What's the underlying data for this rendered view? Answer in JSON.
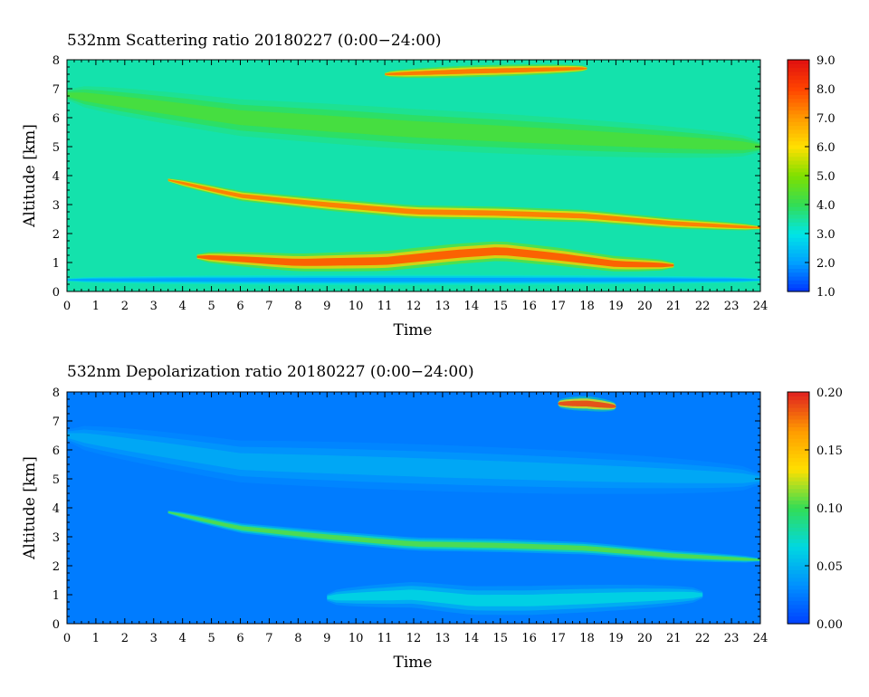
{
  "panels": [
    {
      "title": "532nm Scattering ratio  20180227 (0:00−24:00)",
      "xlabel": "Time",
      "ylabel": "Altitude [km]",
      "x_ticks": [
        "0",
        "1",
        "2",
        "3",
        "4",
        "5",
        "6",
        "7",
        "8",
        "9",
        "10",
        "11",
        "12",
        "13",
        "14",
        "15",
        "16",
        "17",
        "18",
        "19",
        "20",
        "21",
        "22",
        "23",
        "24"
      ],
      "y_ticks": [
        "0",
        "1",
        "2",
        "3",
        "4",
        "5",
        "6",
        "7",
        "8"
      ],
      "colorbar_ticks": [
        "1.0",
        "2.0",
        "3.0",
        "4.0",
        "5.0",
        "6.0",
        "7.0",
        "8.0",
        "9.0"
      ]
    },
    {
      "title": "532nm Depolarization ratio  20180227 (0:00−24:00)",
      "xlabel": "Time",
      "ylabel": "Altitude [km]",
      "x_ticks": [
        "0",
        "1",
        "2",
        "3",
        "4",
        "5",
        "6",
        "7",
        "8",
        "9",
        "10",
        "11",
        "12",
        "13",
        "14",
        "15",
        "16",
        "17",
        "18",
        "19",
        "20",
        "21",
        "22",
        "23",
        "24"
      ],
      "y_ticks": [
        "0",
        "1",
        "2",
        "3",
        "4",
        "5",
        "6",
        "7",
        "8"
      ],
      "colorbar_ticks": [
        "0.00",
        "0.05",
        "0.10",
        "0.15",
        "0.20"
      ]
    }
  ],
  "chart_data": [
    {
      "type": "heatmap",
      "title": "532nm Scattering ratio  20180227 (0:00−24:00)",
      "xlabel": "Time",
      "ylabel": "Altitude [km]",
      "xlim": [
        0,
        24
      ],
      "ylim": [
        0,
        8
      ],
      "colorbar": {
        "min": 1.0,
        "max": 9.0,
        "ticks": [
          1,
          2,
          3,
          4,
          5,
          6,
          7,
          8,
          9
        ],
        "colors": [
          "#0033ff",
          "#00a0ff",
          "#00e6e6",
          "#33dd55",
          "#7ee000",
          "#ffe000",
          "#ff9a00",
          "#ff4400",
          "#e01010"
        ]
      },
      "background_value": 3.4,
      "features": [
        {
          "name": "upper elevated layer",
          "t": [
            3.5,
            6,
            9,
            12,
            15,
            18,
            21,
            24
          ],
          "alt": [
            3.85,
            3.3,
            3.0,
            2.75,
            2.7,
            2.6,
            2.35,
            2.2
          ],
          "thickness_km": 0.45,
          "peak": 7.4
        },
        {
          "name": "lower elevated layer",
          "t": [
            4.5,
            8,
            11,
            13.5,
            15,
            17,
            19,
            21
          ],
          "alt": [
            1.2,
            1.0,
            1.05,
            1.3,
            1.4,
            1.2,
            0.95,
            0.9
          ],
          "thickness_km": 0.7,
          "peak": 7.8
        },
        {
          "name": "mid green band",
          "t": [
            0,
            6,
            12,
            18,
            24
          ],
          "alt": [
            6.8,
            6.0,
            5.6,
            5.3,
            5.0
          ],
          "thickness_km": 1.4,
          "peak": 4.3
        },
        {
          "name": "surface layer",
          "t": [
            0,
            24
          ],
          "alt": [
            0.4,
            0.4
          ],
          "thickness_km": 0.35,
          "peak": 2.0
        },
        {
          "name": "upper cloud",
          "t": [
            11,
            14,
            18
          ],
          "alt": [
            7.5,
            7.6,
            7.7
          ],
          "thickness_km": 0.4,
          "peak": 7.5
        }
      ]
    },
    {
      "type": "heatmap",
      "title": "532nm Depolarization ratio  20180227 (0:00−24:00)",
      "xlabel": "Time",
      "ylabel": "Altitude [km]",
      "xlim": [
        0,
        24
      ],
      "ylim": [
        0,
        8
      ],
      "colorbar": {
        "min": 0.0,
        "max": 0.2,
        "ticks": [
          0.0,
          0.05,
          0.1,
          0.15,
          0.2
        ],
        "colors": [
          "#0040ff",
          "#0090ff",
          "#00d8e0",
          "#33dd55",
          "#ffe000",
          "#ff9a00",
          "#e02020"
        ]
      },
      "background_value": 0.025,
      "features": [
        {
          "name": "upper elevated layer",
          "t": [
            3.5,
            6,
            9,
            12,
            15,
            18,
            21,
            24
          ],
          "alt": [
            3.85,
            3.3,
            3.0,
            2.75,
            2.7,
            2.6,
            2.35,
            2.2
          ],
          "thickness_km": 0.45,
          "peak": 0.105
        },
        {
          "name": "lower elevated layer",
          "t": [
            9,
            12,
            14,
            16,
            19,
            22
          ],
          "alt": [
            0.9,
            1.0,
            0.8,
            0.8,
            0.9,
            1.0
          ],
          "thickness_km": 1.0,
          "peak": 0.065
        },
        {
          "name": "mid aerosol band",
          "t": [
            0,
            6,
            12,
            18,
            24
          ],
          "alt": [
            6.5,
            5.6,
            5.4,
            5.2,
            5.0
          ],
          "thickness_km": 1.6,
          "peak": 0.045
        },
        {
          "name": "upper cloud",
          "t": [
            17,
            18,
            19
          ],
          "alt": [
            7.6,
            7.6,
            7.5
          ],
          "thickness_km": 0.5,
          "peak": 0.19
        }
      ]
    }
  ]
}
